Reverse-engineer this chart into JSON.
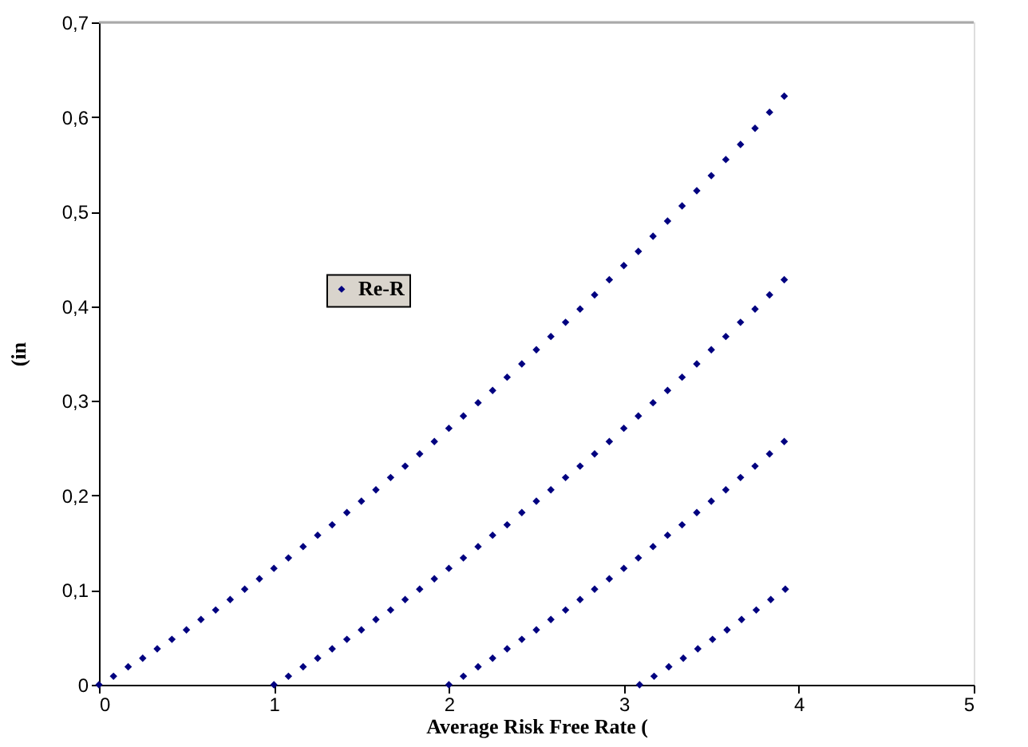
{
  "chart_data": {
    "type": "scatter",
    "xlabel": "Average Risk Free Rate (",
    "ylabel": "(in",
    "series": [
      {
        "name": "Re-R",
        "color": "#000080",
        "x": [
          0,
          0.083,
          0.167,
          0.25,
          0.333,
          0.417,
          0.5,
          0.583,
          0.667,
          0.75,
          0.833,
          0.917,
          1,
          1.083,
          1.167,
          1.25,
          1.333,
          1.417,
          1.5,
          1.583,
          1.667,
          1.75,
          1.833,
          1.917,
          2,
          2.083,
          2.167,
          2.25,
          2.333,
          2.417,
          2.5,
          2.583,
          2.667,
          2.75,
          2.833,
          2.917,
          3,
          3.083,
          3.167,
          3.25,
          3.333,
          3.417,
          3.5,
          3.583,
          3.667,
          3.75,
          3.833,
          3.917,
          1,
          1.083,
          1.167,
          1.25,
          1.333,
          1.417,
          1.5,
          1.583,
          1.667,
          1.75,
          1.833,
          1.917,
          2,
          2.083,
          2.167,
          2.25,
          2.333,
          2.417,
          2.5,
          2.583,
          2.667,
          2.75,
          2.833,
          2.917,
          3,
          3.083,
          3.167,
          3.25,
          3.333,
          3.417,
          3.5,
          3.583,
          3.667,
          3.75,
          3.833,
          3.917,
          2,
          2.083,
          2.167,
          2.25,
          2.333,
          2.417,
          2.5,
          2.583,
          2.667,
          2.75,
          2.833,
          2.917,
          3,
          3.083,
          3.167,
          3.25,
          3.333,
          3.417,
          3.5,
          3.583,
          3.667,
          3.75,
          3.833,
          3.917,
          3.09,
          3.173,
          3.257,
          3.34,
          3.423,
          3.507,
          3.59,
          3.673,
          3.757,
          3.84,
          3.923
        ],
        "values": [
          0,
          0.009,
          0.019,
          0.028,
          0.038,
          0.048,
          0.058,
          0.069,
          0.079,
          0.09,
          0.101,
          0.112,
          0.123,
          0.134,
          0.146,
          0.158,
          0.169,
          0.182,
          0.194,
          0.206,
          0.219,
          0.231,
          0.244,
          0.257,
          0.271,
          0.284,
          0.298,
          0.311,
          0.325,
          0.339,
          0.354,
          0.368,
          0.383,
          0.397,
          0.412,
          0.428,
          0.443,
          0.458,
          0.474,
          0.49,
          0.506,
          0.522,
          0.538,
          0.555,
          0.571,
          0.588,
          0.605,
          0.622,
          0,
          0.009,
          0.019,
          0.028,
          0.038,
          0.048,
          0.058,
          0.069,
          0.079,
          0.09,
          0.101,
          0.112,
          0.123,
          0.134,
          0.146,
          0.158,
          0.169,
          0.182,
          0.194,
          0.206,
          0.219,
          0.231,
          0.244,
          0.257,
          0.271,
          0.284,
          0.298,
          0.311,
          0.325,
          0.339,
          0.354,
          0.368,
          0.383,
          0.397,
          0.412,
          0.428,
          0,
          0.009,
          0.019,
          0.028,
          0.038,
          0.048,
          0.058,
          0.069,
          0.079,
          0.09,
          0.101,
          0.112,
          0.123,
          0.134,
          0.146,
          0.158,
          0.169,
          0.182,
          0.194,
          0.206,
          0.219,
          0.231,
          0.244,
          0.257,
          0,
          0.009,
          0.019,
          0.028,
          0.038,
          0.048,
          0.058,
          0.069,
          0.079,
          0.09,
          0.101
        ]
      }
    ],
    "xlim": [
      0,
      5
    ],
    "xticks": [
      0,
      1,
      2,
      3,
      4,
      5
    ],
    "ylim": [
      0,
      0.7
    ],
    "yticks": [
      0,
      {
        "value": 0.1,
        "label": "0,1"
      },
      {
        "value": 0.2,
        "label": "0,2"
      },
      {
        "value": 0.3,
        "label": "0,3"
      },
      {
        "value": 0.4,
        "label": "0,4"
      },
      {
        "value": 0.5,
        "label": "0,5"
      },
      {
        "value": 0.6,
        "label": "0,6"
      },
      {
        "value": 0.7,
        "label": "0,7"
      }
    ],
    "grid": false,
    "legend": "left",
    "marker": "diamond"
  }
}
